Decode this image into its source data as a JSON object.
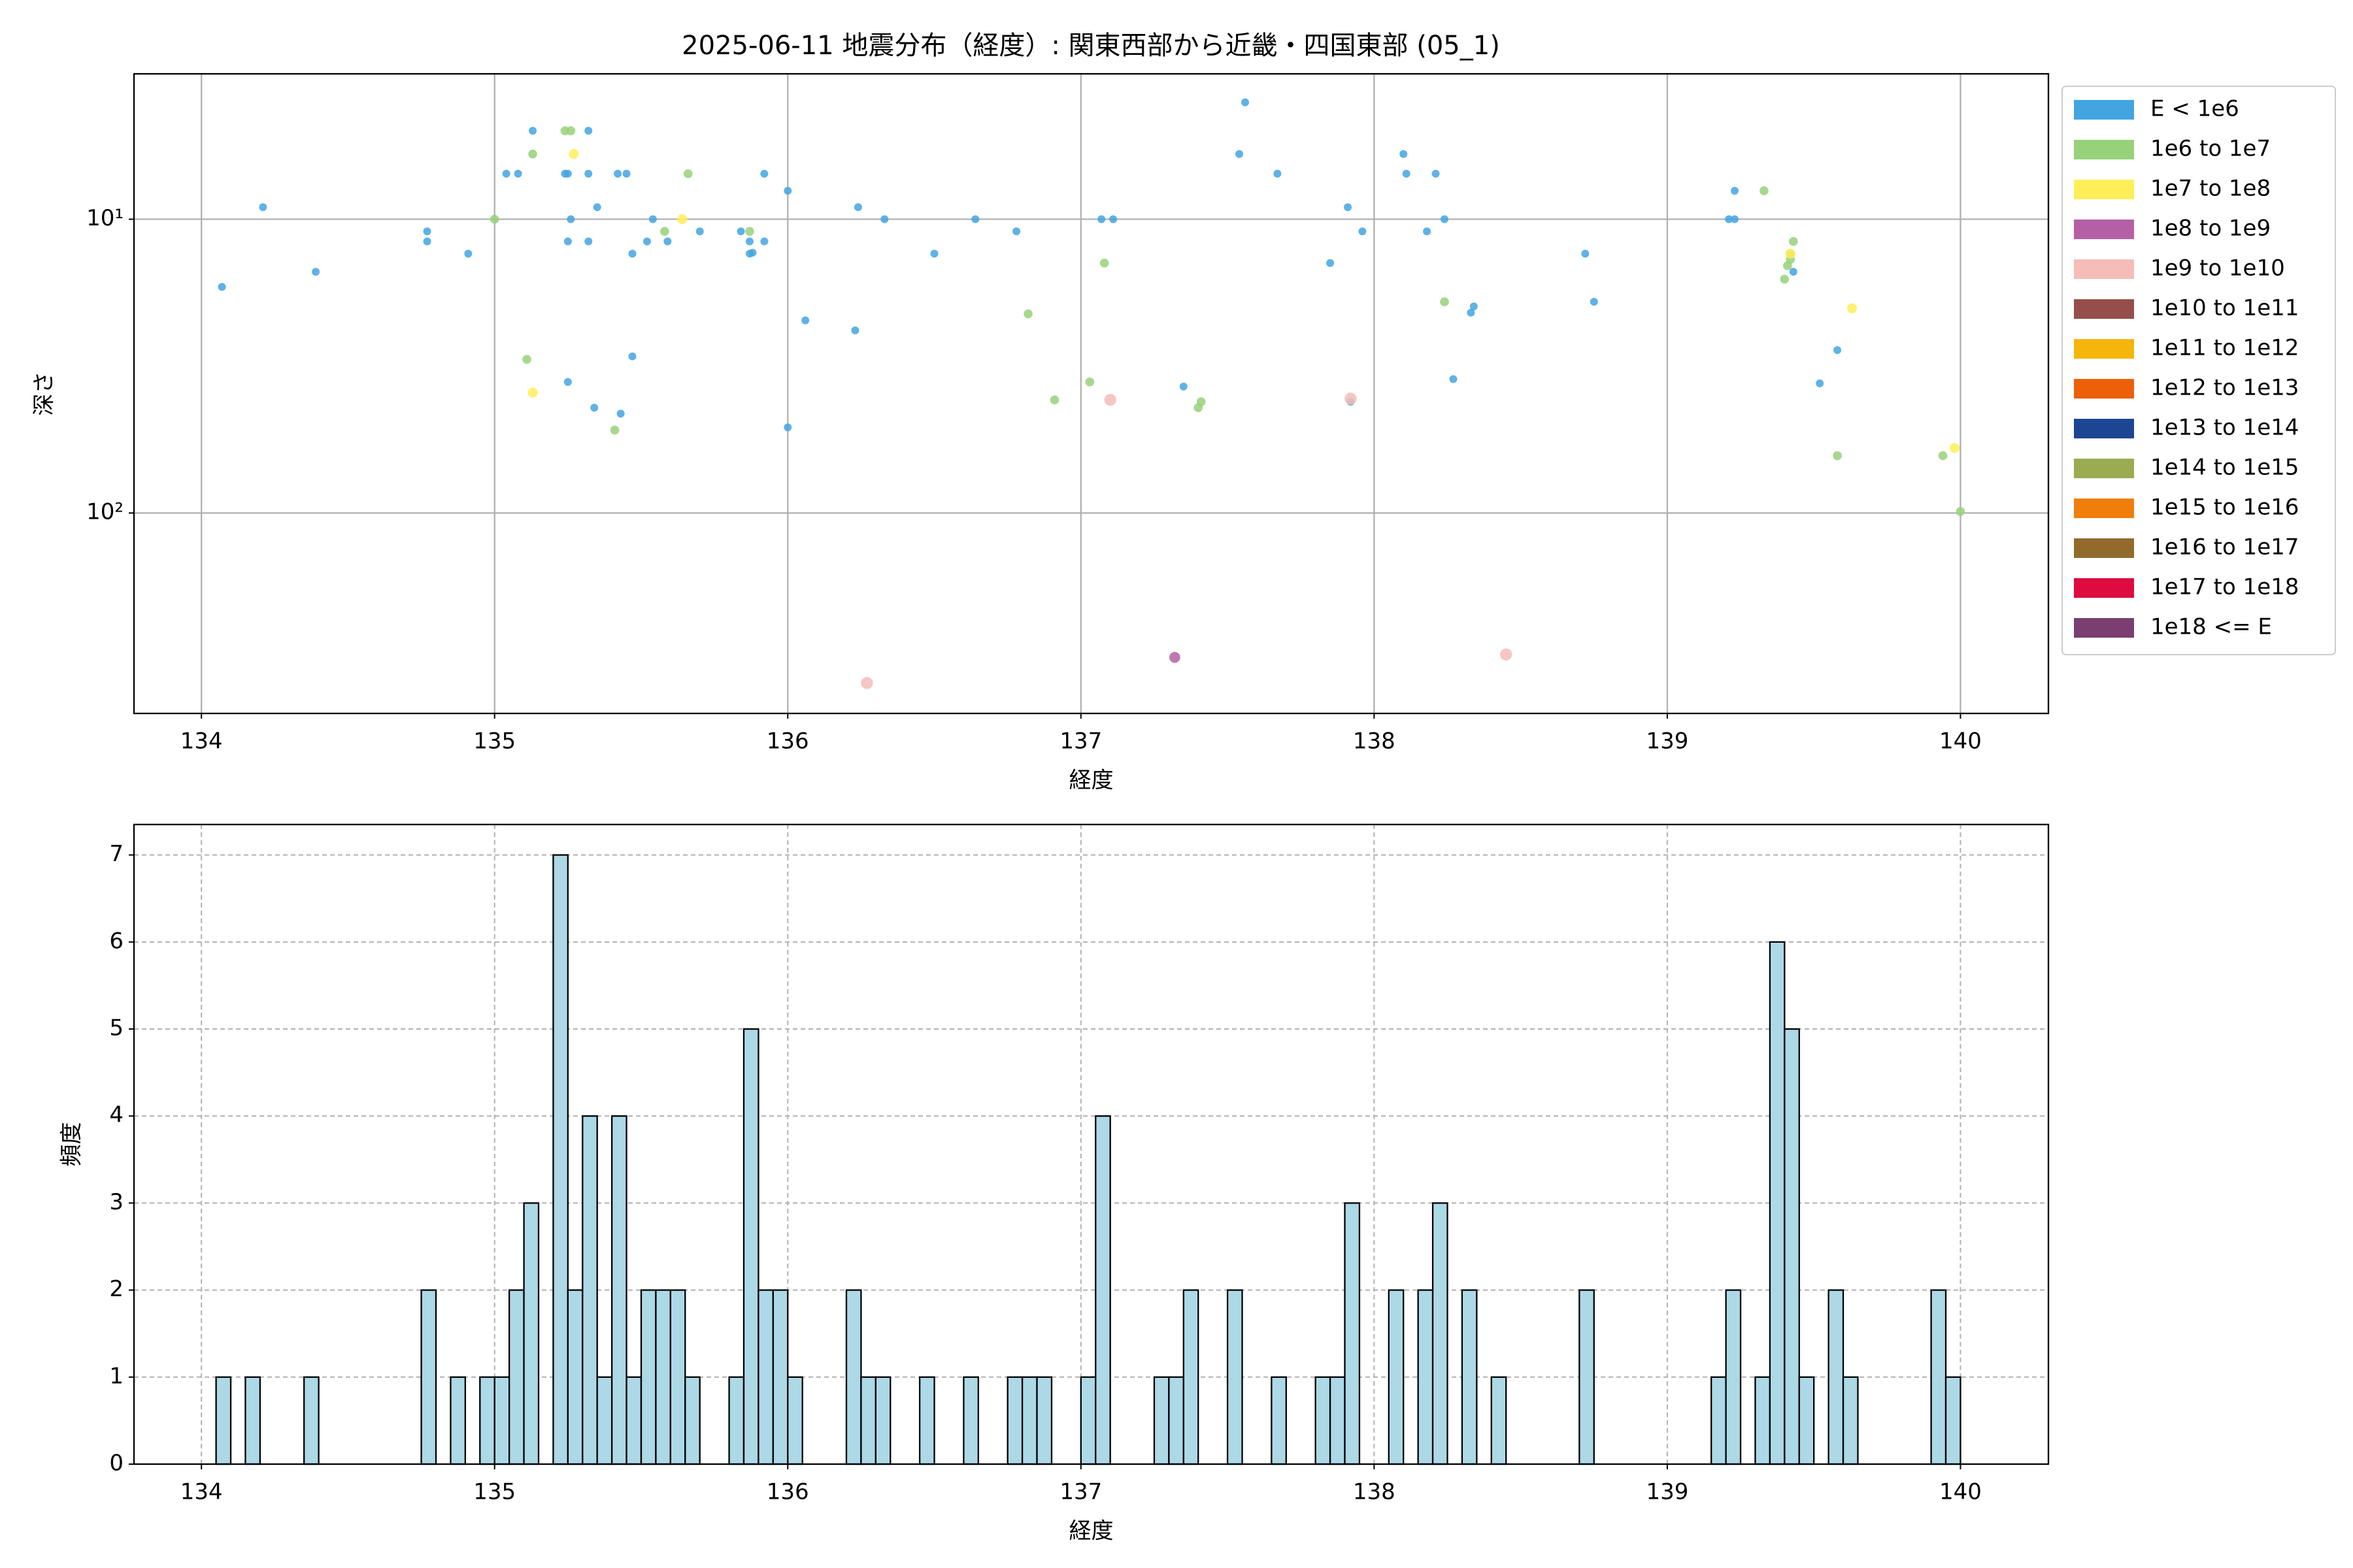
{
  "chart_data": [
    {
      "type": "scatter",
      "title": "2025-06-11 地震分布（経度）: 関東西部から近畿・四国東部 (05_1)",
      "xlabel": "経度",
      "ylabel": "深さ",
      "xlim": [
        133.77,
        140.3
      ],
      "xticks": [
        134,
        135,
        136,
        137,
        138,
        139,
        140
      ],
      "yscale": "log",
      "yinverted": true,
      "ylim": [
        481,
        3.2
      ],
      "yticks": [
        {
          "value": 10,
          "label": "10¹"
        },
        {
          "value": 100,
          "label": "10²"
        }
      ],
      "grid": true,
      "legend": "outside-upper-right",
      "series": [
        {
          "name": "E < 1e6",
          "color": "#42a5e0",
          "x": [
            134.07,
            134.21,
            134.39,
            134.77,
            134.77,
            134.91,
            135.04,
            135.08,
            135.13,
            135.24,
            135.25,
            135.26,
            135.25,
            135.32,
            135.32,
            135.32,
            135.35,
            135.42,
            135.45,
            135.47,
            135.47,
            135.34,
            135.43,
            135.25,
            135.52,
            135.54,
            135.59,
            135.7,
            135.84,
            135.87,
            135.87,
            135.88,
            135.92,
            135.92,
            136.0,
            136.0,
            136.06,
            136.23,
            136.24,
            136.33,
            136.5,
            136.64,
            136.78,
            137.07,
            137.11,
            137.35,
            137.54,
            137.56,
            137.67,
            137.85,
            137.91,
            137.92,
            137.96,
            138.1,
            138.11,
            138.18,
            138.21,
            138.24,
            138.27,
            138.33,
            138.34,
            138.72,
            138.75,
            139.21,
            139.23,
            139.23,
            139.43,
            139.58,
            139.52
          ],
          "values": [
            17.0,
            9.1,
            15.1,
            11.0,
            11.9,
            13.1,
            7.0,
            7.0,
            5.0,
            7.0,
            7.0,
            10,
            11.9,
            5.0,
            7.0,
            11.9,
            9.1,
            7.0,
            7.0,
            13.1,
            29.3,
            43.8,
            45.9,
            35.8,
            11.9,
            10,
            11.9,
            11.0,
            11.0,
            13.1,
            11.9,
            13.0,
            7.0,
            11.9,
            8.0,
            51.1,
            22.1,
            23.9,
            9.1,
            10,
            13.1,
            10,
            11.0,
            10,
            10,
            37.1,
            6.0,
            4.0,
            7.0,
            14.1,
            9.1,
            41.8,
            11.0,
            6.0,
            7.0,
            11.0,
            7.0,
            10,
            35.0,
            20.8,
            19.8,
            13.1,
            19.1,
            10,
            10,
            8.0,
            15.1,
            27.9,
            36.2
          ]
        },
        {
          "name": "1e6 to 1e7",
          "color": "#97d17a",
          "x": [
            135.0,
            135.11,
            135.13,
            135.24,
            135.26,
            135.41,
            135.58,
            135.66,
            135.87,
            136.82,
            136.91,
            137.03,
            137.08,
            137.4,
            137.41,
            138.24,
            139.33,
            139.4,
            139.41,
            139.42,
            139.42,
            139.43,
            139.58,
            139.94,
            140.0
          ],
          "values": [
            10,
            30.0,
            6.0,
            5.0,
            5.0,
            52.2,
            11.0,
            7.0,
            11.0,
            21.0,
            41.2,
            35.8,
            14.1,
            43.8,
            41.8,
            19.1,
            8.0,
            16.0,
            14.4,
            13.7,
            13.1,
            11.9,
            63.8,
            63.8,
            98.8
          ]
        },
        {
          "name": "1e7 to 1e8",
          "color": "#ffee58",
          "x": [
            135.13,
            135.27,
            135.64,
            139.42,
            139.63,
            139.98
          ],
          "values": [
            38.9,
            6.0,
            10,
            13.1,
            20.1,
            60.1
          ]
        },
        {
          "name": "1e8 to 1e9",
          "color": "#b560a6",
          "x": [
            137.32
          ],
          "values": [
            310
          ]
        },
        {
          "name": "1e9 to 1e10",
          "color": "#f5bcb8",
          "x": [
            136.27,
            137.1,
            138.45,
            137.92
          ],
          "values": [
            379,
            41.2,
            303,
            40.8
          ]
        },
        {
          "name": "1e10 to 1e11",
          "color": "#954e4a",
          "x": [],
          "values": []
        },
        {
          "name": "1e11 to 1e12",
          "color": "#f5b50a",
          "x": [],
          "values": []
        },
        {
          "name": "1e12 to 1e13",
          "color": "#ed6009",
          "x": [],
          "values": []
        },
        {
          "name": "1e13 to 1e14",
          "color": "#1c4693",
          "x": [],
          "values": []
        },
        {
          "name": "1e14 to 1e15",
          "color": "#9aab52",
          "x": [],
          "values": []
        },
        {
          "name": "1e15 to 1e16",
          "color": "#f07e0c",
          "x": [],
          "values": []
        },
        {
          "name": "1e16 to 1e17",
          "color": "#926b2c",
          "x": [],
          "values": []
        },
        {
          "name": "1e17 to 1e18",
          "color": "#dd0b3f",
          "x": [],
          "values": []
        },
        {
          "name": "1e18 <= E",
          "color": "#7a3e71",
          "x": [],
          "values": []
        }
      ]
    },
    {
      "type": "histogram",
      "xlabel": "経度",
      "ylabel": "頻度",
      "xlim": [
        133.77,
        140.3
      ],
      "xticks": [
        134,
        135,
        136,
        137,
        138,
        139,
        140
      ],
      "ylim": [
        0,
        7.35
      ],
      "yticks": [
        0,
        1,
        2,
        3,
        4,
        5,
        6,
        7
      ],
      "grid": true,
      "color": "#add8e6",
      "edgecolor": "#000000",
      "bins": [
        134.05,
        134.1,
        134.15,
        134.2,
        134.25,
        134.3,
        134.35,
        134.4,
        134.45,
        134.5,
        134.55,
        134.6,
        134.65,
        134.7,
        134.75,
        134.8,
        134.85,
        134.9,
        134.95,
        135.0,
        135.05,
        135.1,
        135.15,
        135.2,
        135.25,
        135.3,
        135.35,
        135.4,
        135.45,
        135.5,
        135.55,
        135.6,
        135.65,
        135.7,
        135.75,
        135.8,
        135.85,
        135.9,
        135.95,
        136.0,
        136.05,
        136.1,
        136.15,
        136.2,
        136.25,
        136.3,
        136.35,
        136.4,
        136.45,
        136.5,
        136.55,
        136.6,
        136.65,
        136.7,
        136.75,
        136.8,
        136.85,
        136.9,
        136.95,
        137.0,
        137.05,
        137.1,
        137.15,
        137.2,
        137.25,
        137.3,
        137.35,
        137.4,
        137.45,
        137.5,
        137.55,
        137.6,
        137.65,
        137.7,
        137.75,
        137.8,
        137.85,
        137.9,
        137.95,
        138.0,
        138.05,
        138.1,
        138.15,
        138.2,
        138.25,
        138.3,
        138.35,
        138.4,
        138.45,
        138.5,
        138.55,
        138.6,
        138.65,
        138.7,
        138.75,
        138.8,
        138.85,
        138.9,
        138.95,
        139.0,
        139.05,
        139.1,
        139.15,
        139.2,
        139.25,
        139.3,
        139.35,
        139.4,
        139.45,
        139.5,
        139.55,
        139.6,
        139.65,
        139.7,
        139.75,
        139.8,
        139.85,
        139.9,
        139.95,
        140.0,
        140.05
      ],
      "values": [
        1,
        0,
        1,
        0,
        0,
        0,
        1,
        0,
        0,
        0,
        0,
        0,
        0,
        0,
        2,
        0,
        1,
        0,
        1,
        1,
        2,
        3,
        0,
        7,
        2,
        4,
        1,
        4,
        1,
        2,
        2,
        2,
        1,
        0,
        0,
        1,
        5,
        2,
        2,
        1,
        0,
        0,
        0,
        2,
        1,
        1,
        0,
        0,
        1,
        0,
        0,
        1,
        0,
        0,
        1,
        1,
        1,
        0,
        0,
        1,
        4,
        0,
        0,
        0,
        1,
        1,
        2,
        0,
        0,
        2,
        0,
        0,
        1,
        0,
        0,
        1,
        1,
        3,
        0,
        0,
        2,
        0,
        2,
        3,
        0,
        2,
        0,
        1,
        0,
        0,
        0,
        0,
        0,
        2,
        0,
        0,
        0,
        0,
        0,
        0,
        0,
        0,
        1,
        2,
        0,
        1,
        6,
        5,
        1,
        0,
        2,
        1,
        0,
        0,
        0,
        0,
        0,
        2,
        1,
        0
      ]
    }
  ]
}
